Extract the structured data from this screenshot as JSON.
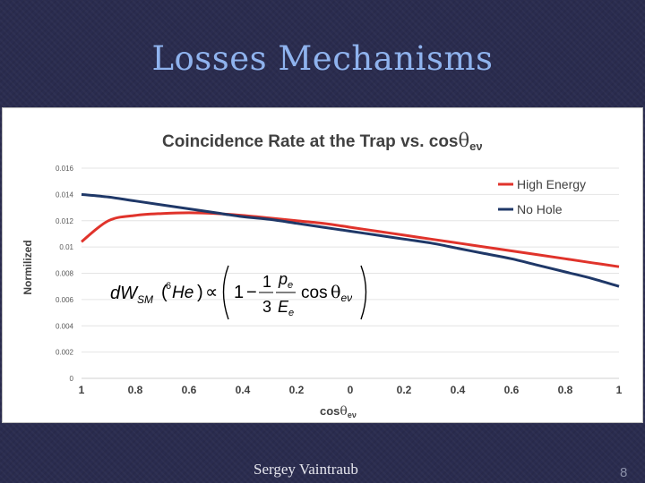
{
  "slide": {
    "title": "Losses Mechanisms",
    "author": "Sergey Vaintraub",
    "page_number": "8"
  },
  "chart_data": {
    "type": "line",
    "title_prefix": "Coincidence Rate at the Trap vs. cos",
    "title_symbol": "θ",
    "title_subscript": "eν",
    "xlabel_prefix": "cos",
    "xlabel_symbol": "θ",
    "xlabel_subscript": "eν",
    "ylabel": "Normilized",
    "x_tick_labels": [
      "1",
      "0.8",
      "0.6",
      "0.4",
      "0.2",
      "0",
      "0.2",
      "0.4",
      "0.6",
      "0.8",
      "1"
    ],
    "y_ticks": [
      0,
      0.002,
      0.004,
      0.006,
      0.008,
      0.01,
      0.012,
      0.014,
      0.016
    ],
    "y_tick_labels": [
      "0",
      "0.002",
      "0.004",
      "0.006",
      "0.008",
      "0.01",
      "0.012",
      "0.014",
      "0.016"
    ],
    "ylim": [
      0,
      0.016
    ],
    "legend_position": "top-right",
    "x": [
      1,
      0.9,
      0.8,
      0.7,
      0.6,
      0.5,
      0.4,
      0.3,
      0.2,
      0.1,
      0,
      -0.1,
      -0.2,
      -0.3,
      -0.4,
      -0.5,
      -0.6,
      -0.7,
      -0.8,
      -0.9,
      -1
    ],
    "series": [
      {
        "name": "High Energy",
        "color": "#e0332b",
        "values": [
          0.0104,
          0.012,
          0.0124,
          0.01255,
          0.0126,
          0.01255,
          0.0124,
          0.0122,
          0.012,
          0.0118,
          0.0115,
          0.0112,
          0.0109,
          0.0106,
          0.0103,
          0.01,
          0.0097,
          0.0094,
          0.0091,
          0.0088,
          0.0085
        ]
      },
      {
        "name": "No Hole",
        "color": "#1f3868",
        "values": [
          0.014,
          0.0138,
          0.0135,
          0.0132,
          0.0129,
          0.0126,
          0.0123,
          0.0121,
          0.0118,
          0.0115,
          0.0112,
          0.0109,
          0.0106,
          0.0103,
          0.0099,
          0.0095,
          0.0091,
          0.0086,
          0.0081,
          0.0076,
          0.007
        ]
      }
    ],
    "formula": {
      "lhs_main": "dW",
      "lhs_sub": "SM",
      "lhs_arg_sup": "6",
      "lhs_arg": "He",
      "proportional": "∝",
      "one": "1",
      "minus": "−",
      "frac1_num": "1",
      "frac1_den": "3",
      "frac2_num_main": "p",
      "frac2_num_sub": "e",
      "frac2_den_main": "E",
      "frac2_den_sub": "e",
      "cos": "cos",
      "theta": "θ",
      "theta_sub": "eν"
    }
  }
}
